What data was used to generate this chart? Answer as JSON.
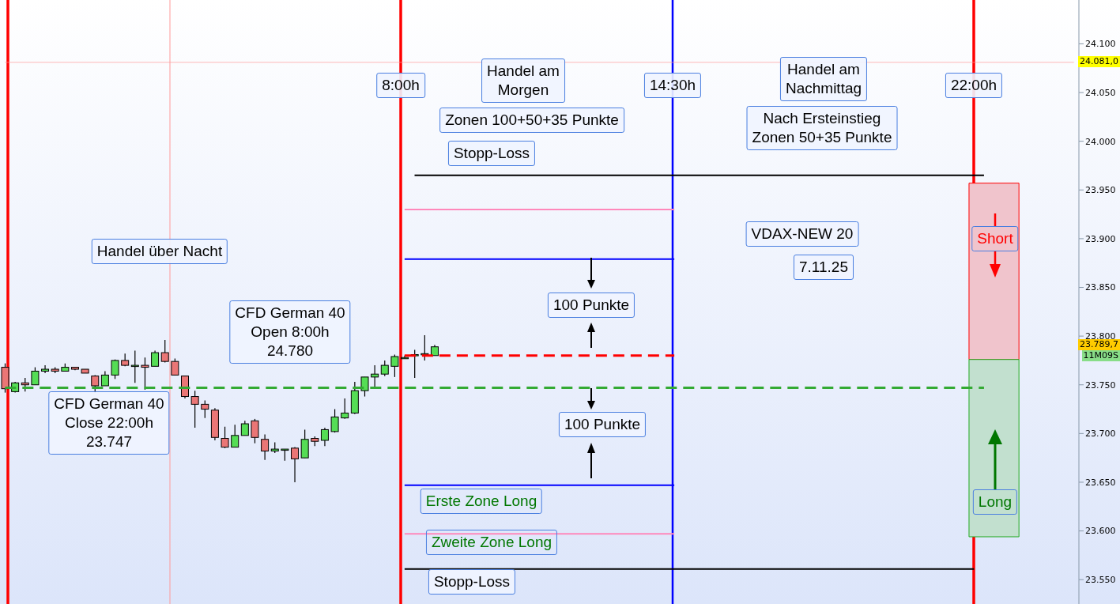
{
  "chart_data": {
    "type": "candlestick",
    "categories": [
      null,
      null,
      null,
      null,
      null,
      null,
      null,
      null,
      null,
      null,
      null,
      null,
      null,
      null,
      null,
      null,
      null,
      null,
      null,
      null,
      null,
      null,
      null,
      null,
      null,
      null,
      null,
      null,
      null,
      null,
      null,
      null,
      null,
      null,
      null,
      null,
      null,
      null,
      null,
      null,
      null,
      null,
      null,
      null,
      null,
      null,
      null,
      null,
      null,
      null,
      null,
      null,
      null,
      null,
      null,
      null,
      null,
      null,
      null,
      null,
      null,
      null,
      null,
      null,
      null,
      null,
      null,
      null,
      null,
      null,
      null,
      null,
      null,
      null,
      null,
      null,
      null,
      null,
      null,
      null,
      null,
      null,
      null,
      null,
      null,
      null,
      null,
      null,
      null,
      null,
      null,
      null,
      null,
      null,
      null,
      null,
      null,
      null,
      null,
      null,
      null,
      null,
      null,
      null,
      null,
      null,
      null,
      null
    ],
    "ohlc": [
      [
        23768,
        23772,
        23742,
        23746
      ],
      [
        23743,
        23753,
        23742,
        23752
      ],
      [
        23752,
        23757,
        23743,
        23750
      ],
      [
        23750,
        23768,
        23750,
        23764
      ],
      [
        23764,
        23770,
        23762,
        23766
      ],
      [
        23766,
        23768,
        23762,
        23764
      ],
      [
        23764,
        23772,
        23764,
        23768
      ],
      [
        23768,
        23768,
        23765,
        23766
      ],
      [
        23766,
        23766,
        23762,
        23762
      ],
      [
        23759,
        23760,
        23742,
        23749
      ],
      [
        23749,
        23764,
        23749,
        23760
      ],
      [
        23760,
        23776,
        23756,
        23775
      ],
      [
        23775,
        23782,
        23769,
        23770
      ],
      [
        23770,
        23785,
        23752,
        23770
      ],
      [
        23770,
        23778,
        23745,
        23768
      ],
      [
        23769,
        23785,
        23769,
        23783
      ],
      [
        23783,
        23796,
        23773,
        23774
      ],
      [
        23774,
        23777,
        23760,
        23760
      ],
      [
        23759,
        23759,
        23736,
        23738
      ],
      [
        23738,
        23744,
        23706,
        23730
      ],
      [
        23730,
        23734,
        23716,
        23725
      ],
      [
        23724,
        23726,
        23693,
        23696
      ],
      [
        23695,
        23707,
        23685,
        23686
      ],
      [
        23686,
        23709,
        23686,
        23698
      ],
      [
        23698,
        23713,
        23698,
        23710
      ],
      [
        23713,
        23715,
        23690,
        23696
      ],
      [
        23694,
        23699,
        23673,
        23682
      ],
      [
        23682,
        23691,
        23680,
        23684
      ],
      [
        23684,
        23684,
        23672,
        23684
      ],
      [
        23685,
        23686,
        23650,
        23674
      ],
      [
        23675,
        23704,
        23675,
        23694
      ],
      [
        23695,
        23697,
        23687,
        23692
      ],
      [
        23693,
        23706,
        23687,
        23704
      ],
      [
        23702,
        23725,
        23701,
        23717
      ],
      [
        23716,
        23736,
        23715,
        23721
      ],
      [
        23721,
        23753,
        23720,
        23744
      ],
      [
        23744,
        23758,
        23738,
        23758
      ],
      [
        23758,
        23770,
        23747,
        23761
      ],
      [
        23761,
        23775,
        23759,
        23770
      ],
      [
        23769,
        23781,
        23758,
        23779
      ],
      [
        23778,
        23780,
        23777,
        23778
      ],
      [
        23780,
        23786,
        23757,
        23781
      ],
      [
        23782,
        23801,
        23775,
        23782
      ],
      [
        23780,
        23791,
        23780,
        23789
      ],
      null,
      null,
      null,
      null,
      null,
      null,
      null,
      null,
      null,
      null,
      null,
      null,
      null,
      null,
      null,
      null,
      null,
      null,
      null,
      null,
      null,
      null,
      null,
      null,
      null,
      null,
      null,
      null,
      null,
      null,
      null,
      null,
      null,
      null,
      null,
      null,
      null,
      null,
      null,
      null,
      null,
      null,
      null,
      null,
      null,
      null,
      null,
      null,
      null,
      null,
      null,
      null,
      null,
      null,
      null,
      null,
      null,
      null,
      null,
      null,
      null,
      null,
      null,
      null
    ],
    "ylim": [
      23525,
      24145
    ],
    "yticks": [
      {
        "value": 23550,
        "label": "23.550"
      },
      {
        "value": 23600,
        "label": "23.600"
      },
      {
        "value": 23650,
        "label": "23.650"
      },
      {
        "value": 23700,
        "label": "23.700"
      },
      {
        "value": 23750,
        "label": "23.750"
      },
      {
        "value": 23800,
        "label": "23.800"
      },
      {
        "value": 23850,
        "label": "23.850"
      },
      {
        "value": 23900,
        "label": "23.900"
      },
      {
        "value": 23950,
        "label": "23.950"
      },
      {
        "value": 24000,
        "label": "24.000"
      },
      {
        "value": 24050,
        "label": "24.050"
      },
      {
        "value": 24100,
        "label": "24.100"
      }
    ],
    "tick_labels": "y",
    "ref_lines": [
      {
        "axis": "y",
        "value": 23965,
        "color": "#000000"
      },
      {
        "axis": "y",
        "value": 23930,
        "color": "#ff88bb"
      },
      {
        "axis": "y",
        "value": 23879,
        "color": "#0000ff"
      },
      {
        "axis": "y",
        "value": 23780,
        "color": "#ff0000",
        "line_style": "dashed"
      },
      {
        "axis": "y",
        "value": 23747,
        "color": "#33aa33",
        "line_style": "dashed"
      },
      {
        "axis": "y",
        "value": 23647,
        "color": "#0000ff"
      },
      {
        "axis": "y",
        "value": 23597,
        "color": "#ff88bb"
      },
      {
        "axis": "y",
        "value": 23561,
        "color": "#000000"
      },
      {
        "axis": "y",
        "value": 24081,
        "color": "#ff9999"
      }
    ],
    "bands": [
      {
        "axis": "y",
        "from": 23776,
        "to": 23957,
        "color": "#f0c4cc"
      },
      {
        "axis": "y",
        "from": 23594,
        "to": 23776,
        "color": "#c2e0cf"
      }
    ],
    "annotations": [
      "Handel über Nacht",
      "CFD German 40\nOpen 8:00h\n24.780",
      "CFD German 40\nClose 22:00h\n23.747",
      "8:00h",
      "Handel am\nMorgen",
      "Zonen 100+50+35 Punkte",
      "Stopp-Loss",
      "14:30h",
      "Handel am\nNachmittag",
      "Nach Ersteinstieg\nZonen 50+35 Punkte",
      "22:00h",
      "VDAX-NEW 20",
      "7.11.25",
      "100 Punkte",
      "100 Punkte",
      "Erste Zone Long",
      "Zweite Zone Long",
      "Stopp-Loss",
      "Short",
      "Long",
      "24.081,0",
      "23.789,7",
      "11M09S"
    ]
  }
}
